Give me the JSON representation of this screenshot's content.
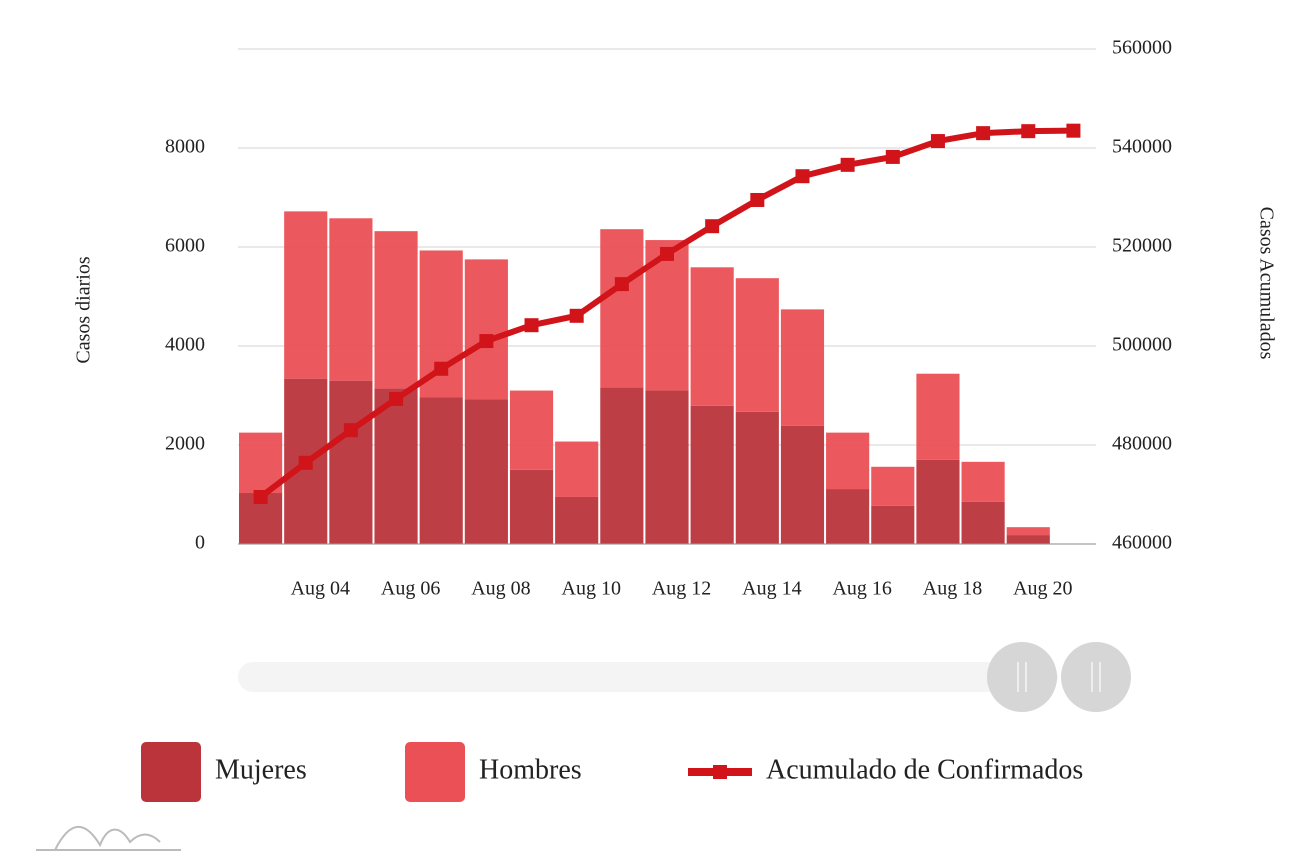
{
  "chart_data": {
    "type": "bar-line",
    "y_label": "Casos diarios",
    "y2_label": "Casos Acumulados",
    "categories": [
      null,
      null,
      "Aug 04",
      null,
      "Aug 06",
      null,
      "Aug 08",
      null,
      "Aug 10",
      null,
      "Aug 12",
      null,
      "Aug 14",
      null,
      "Aug 16",
      null,
      "Aug 18",
      null,
      "Aug 20"
    ],
    "series": [
      {
        "name": "Mujeres",
        "color": "#bb343b",
        "type": "bar",
        "values": [
          1030,
          3340,
          3300,
          3140,
          2960,
          2920,
          1500,
          950,
          3160,
          3100,
          2790,
          2670,
          2390,
          1110,
          770,
          1700,
          850,
          180,
          null
        ]
      },
      {
        "name": "Hombres",
        "color": "#ea5056",
        "type": "bar",
        "values": [
          1220,
          3380,
          3280,
          3180,
          2970,
          2830,
          1600,
          1120,
          3200,
          3040,
          2800,
          2700,
          2350,
          1140,
          790,
          1740,
          810,
          160,
          null
        ]
      },
      {
        "name": "Acumulado de Confirmados",
        "color": "#d0141a",
        "type": "line",
        "axis": "y2",
        "values": [
          469500,
          476400,
          483000,
          489300,
          495400,
          501000,
          504200,
          506100,
          512500,
          518600,
          524200,
          529500,
          534300,
          536600,
          538200,
          541400,
          543000,
          543400,
          543500
        ]
      }
    ],
    "ylim": [
      0,
      10000
    ],
    "yticks": [
      0,
      2000,
      4000,
      6000,
      8000
    ],
    "y2lim": [
      460000,
      560000
    ],
    "y2ticks": [
      460000,
      480000,
      500000,
      520000,
      540000,
      560000
    ],
    "grid": true,
    "legend": "bottom"
  }
}
